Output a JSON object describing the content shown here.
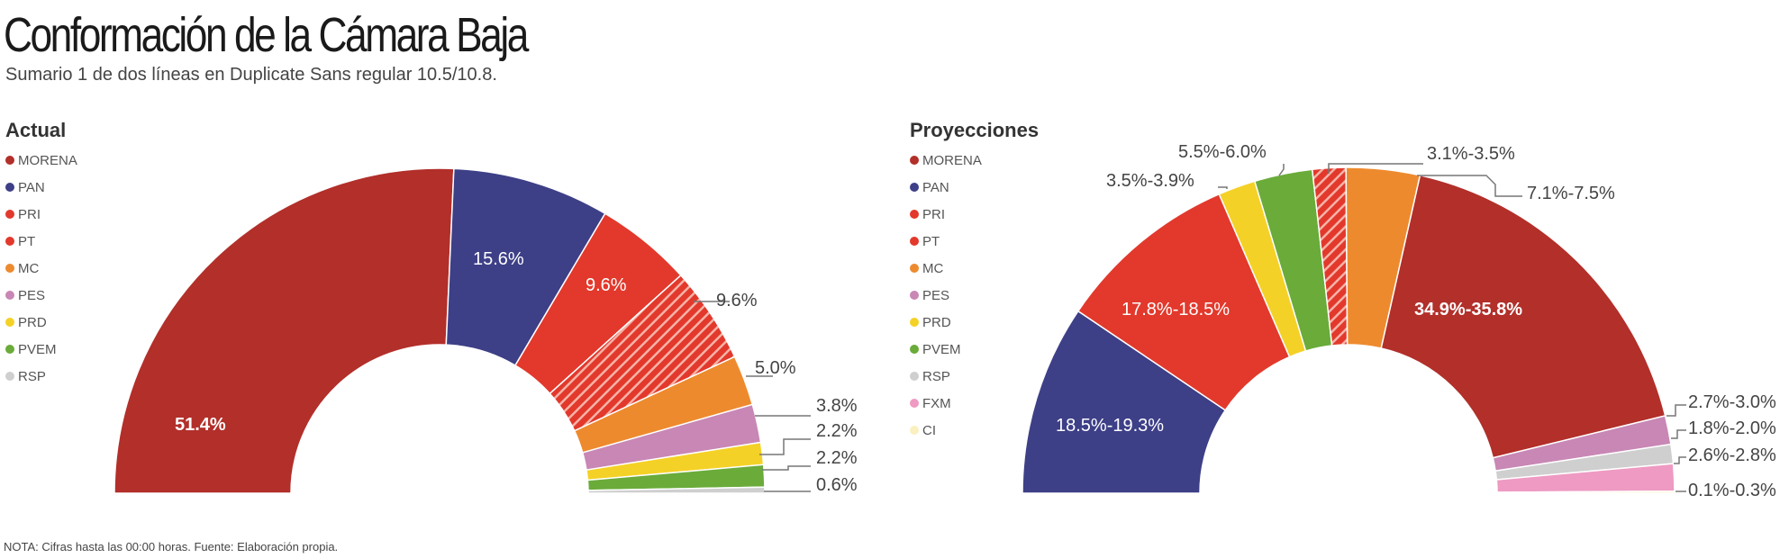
{
  "title": "Conformación de la Cámara Baja",
  "subtitle": "Sumario 1 de dos  líneas en Duplicate Sans regular 10.5/10.8.",
  "note": "NOTA: Cifras hasta las 00:00 horas. Fuente: Elaboración propia.",
  "colors": {
    "MORENA": "#b22f2a",
    "PAN": "#3d3f87",
    "PRI": "#e2392c",
    "PT": "hatch",
    "MC": "#ee8a2e",
    "PES": "#c887b5",
    "PRD": "#f4d126",
    "PVEM": "#6aab3a",
    "RSP": "#cfcfcf",
    "FXM": "#ee9ac2",
    "CI": "#faf0c0"
  },
  "chart_data": [
    {
      "type": "pie",
      "title": "Actual",
      "subtype": "half-donut",
      "legend": [
        "MORENA",
        "PAN",
        "PRI",
        "PT",
        "MC",
        "PES",
        "PRD",
        "PVEM",
        "RSP"
      ],
      "slices": [
        {
          "party": "MORENA",
          "value": 51.4,
          "label": "51.4%"
        },
        {
          "party": "PAN",
          "value": 15.6,
          "label": "15.6%"
        },
        {
          "party": "PRI",
          "value": 9.6,
          "label": "9.6%"
        },
        {
          "party": "PT",
          "value": 9.6,
          "label": "9.6%"
        },
        {
          "party": "MC",
          "value": 5.0,
          "label": "5.0%"
        },
        {
          "party": "PES",
          "value": 3.8,
          "label": "3.8%"
        },
        {
          "party": "PRD",
          "value": 2.2,
          "label": "2.2%"
        },
        {
          "party": "PVEM",
          "value": 2.2,
          "label": "2.2%"
        },
        {
          "party": "RSP",
          "value": 0.6,
          "label": "0.6%"
        }
      ]
    },
    {
      "type": "pie",
      "title": "Proyecciones",
      "subtype": "half-donut",
      "legend": [
        "MORENA",
        "PAN",
        "PRI",
        "PT",
        "MC",
        "PES",
        "PRD",
        "PVEM",
        "RSP",
        "FXM",
        "CI"
      ],
      "slices": [
        {
          "party": "PAN",
          "value": [
            18.5,
            19.3
          ],
          "label": "18.5%-19.3%"
        },
        {
          "party": "PRI",
          "value": [
            17.8,
            18.5
          ],
          "label": "17.8%-18.5%"
        },
        {
          "party": "PRD",
          "value": [
            3.5,
            3.9
          ],
          "label": "3.5%-3.9%"
        },
        {
          "party": "PVEM",
          "value": [
            5.5,
            6.0
          ],
          "label": "5.5%-6.0%"
        },
        {
          "party": "PT",
          "value": [
            3.1,
            3.5
          ],
          "label": "3.1%-3.5%"
        },
        {
          "party": "MC",
          "value": [
            7.1,
            7.5
          ],
          "label": "7.1%-7.5%"
        },
        {
          "party": "MORENA",
          "value": [
            34.9,
            35.8
          ],
          "label": "34.9%-35.8%"
        },
        {
          "party": "PES",
          "value": [
            2.7,
            3.0
          ],
          "label": "2.7%-3.0%"
        },
        {
          "party": "RSP",
          "value": [
            1.8,
            2.0
          ],
          "label": "1.8%-2.0%"
        },
        {
          "party": "FXM",
          "value": [
            2.6,
            2.8
          ],
          "label": "2.6%-2.8%"
        },
        {
          "party": "CI",
          "value": [
            0.1,
            0.3
          ],
          "label": "0.1%-0.3%"
        }
      ]
    }
  ]
}
